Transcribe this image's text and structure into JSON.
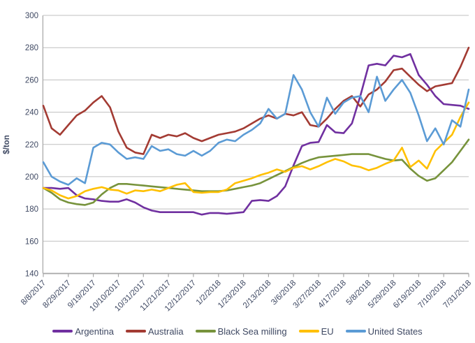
{
  "chart_data": {
    "type": "line",
    "title": "",
    "xlabel": "",
    "ylabel": "$/ton",
    "ylim": [
      140,
      300
    ],
    "y_ticks": [
      140,
      160,
      180,
      200,
      220,
      240,
      260,
      280,
      300
    ],
    "grid": true,
    "legend_position": "bottom",
    "tick_step": 3,
    "x_tick_labels": [
      "8/8/2017",
      "8/29/2017",
      "9/19/2017",
      "10/10/2017",
      "10/31/2017",
      "11/21/2017",
      "12/12/2017",
      "1/2/2018",
      "1/23/2018",
      "2/13/2018",
      "3/6/2018",
      "3/27/2018",
      "4/17/2018",
      "5/8/2018",
      "5/29/2018",
      "6/19/2018",
      "7/10/2018",
      "7/31/2018"
    ],
    "categories": [
      "8/8/2017",
      "8/15/2017",
      "8/22/2017",
      "8/29/2017",
      "9/5/2017",
      "9/12/2017",
      "9/19/2017",
      "9/26/2017",
      "10/3/2017",
      "10/10/2017",
      "10/17/2017",
      "10/24/2017",
      "10/31/2017",
      "11/7/2017",
      "11/14/2017",
      "11/21/2017",
      "11/28/2017",
      "12/5/2017",
      "12/12/2017",
      "12/19/2017",
      "12/26/2017",
      "1/2/2018",
      "1/9/2018",
      "1/16/2018",
      "1/23/2018",
      "1/30/2018",
      "2/6/2018",
      "2/13/2018",
      "2/20/2018",
      "2/27/2018",
      "3/6/2018",
      "3/13/2018",
      "3/20/2018",
      "3/27/2018",
      "4/3/2018",
      "4/10/2018",
      "4/17/2018",
      "4/24/2018",
      "5/1/2018",
      "5/8/2018",
      "5/15/2018",
      "5/22/2018",
      "5/29/2018",
      "6/5/2018",
      "6/12/2018",
      "6/19/2018",
      "6/26/2018",
      "7/3/2018",
      "7/10/2018",
      "7/17/2018",
      "7/24/2018",
      "7/31/2018"
    ],
    "series": [
      {
        "name": "Argentina",
        "color": "#7030A0",
        "values": [
          193,
          193,
          192.5,
          193,
          188.5,
          186.5,
          186,
          185,
          184.5,
          184.5,
          186,
          184,
          181,
          179,
          178,
          178,
          178,
          178,
          178,
          176.5,
          177.5,
          177.5,
          177,
          177.5,
          178,
          185,
          185.5,
          185,
          188,
          194,
          207,
          219,
          221,
          221.5,
          232,
          227.5,
          227,
          233,
          250,
          269,
          270,
          269,
          275,
          274,
          276,
          263,
          257,
          250,
          245,
          244.5,
          244,
          242
        ]
      },
      {
        "name": "Australia",
        "color": "#A33B33",
        "values": [
          244,
          230,
          226,
          232,
          238,
          241,
          246,
          250,
          243,
          228,
          218,
          215,
          214,
          226,
          224,
          226,
          225,
          227,
          224,
          222,
          224,
          226,
          227,
          228,
          230,
          233,
          236,
          238,
          236,
          239,
          238,
          240,
          232,
          231,
          236,
          242,
          247,
          250,
          243.5,
          251,
          254,
          259,
          266,
          267,
          262,
          257,
          253,
          256,
          257,
          258,
          268,
          280
        ]
      },
      {
        "name": "Black Sea milling",
        "color": "#77933C",
        "values": [
          193,
          190,
          186,
          184,
          183,
          182.5,
          184,
          189,
          193,
          195.5,
          195.5,
          195,
          194.5,
          194,
          193.5,
          193,
          192.5,
          192,
          191.5,
          191,
          191,
          191,
          191.5,
          192.5,
          193.5,
          194.5,
          196,
          198.5,
          201,
          203.5,
          206,
          208.5,
          210.5,
          212,
          212.5,
          213,
          213.5,
          214,
          214,
          214,
          212.5,
          211,
          210,
          210.5,
          205,
          200.5,
          197.5,
          199,
          204,
          209,
          216,
          223
        ]
      },
      {
        "name": "EU",
        "color": "#FFC000",
        "values": [
          193,
          191.5,
          188.5,
          186.5,
          188,
          191,
          192.5,
          193.5,
          192,
          191.5,
          189.5,
          191.5,
          191,
          192,
          191,
          193,
          195,
          196,
          190.5,
          190,
          190.5,
          190.5,
          192,
          196,
          197.5,
          199,
          201,
          202.5,
          204.5,
          203,
          205.5,
          206.5,
          204.5,
          206.5,
          209,
          211,
          209.5,
          207,
          206,
          204,
          205.5,
          208,
          210,
          218,
          206,
          210,
          205,
          216,
          221,
          226,
          237,
          246
        ]
      },
      {
        "name": "United States",
        "color": "#5B9BD5",
        "values": [
          209,
          200,
          197,
          195,
          199,
          196,
          218,
          221,
          220,
          215,
          211,
          212,
          211,
          219,
          216,
          217,
          214,
          213,
          216,
          213,
          216,
          221,
          223,
          222,
          226,
          229,
          233,
          242,
          236,
          239,
          263,
          254,
          240,
          231,
          249,
          239,
          246,
          249,
          250,
          240,
          262,
          247,
          254,
          260,
          252,
          238,
          222,
          230,
          220,
          235,
          231,
          254
        ]
      }
    ],
    "style": {
      "grid_color": "#BFBFBF",
      "axis_color": "#A6A6A6",
      "text_color": "#3F4963",
      "line_width": 2.6
    }
  }
}
